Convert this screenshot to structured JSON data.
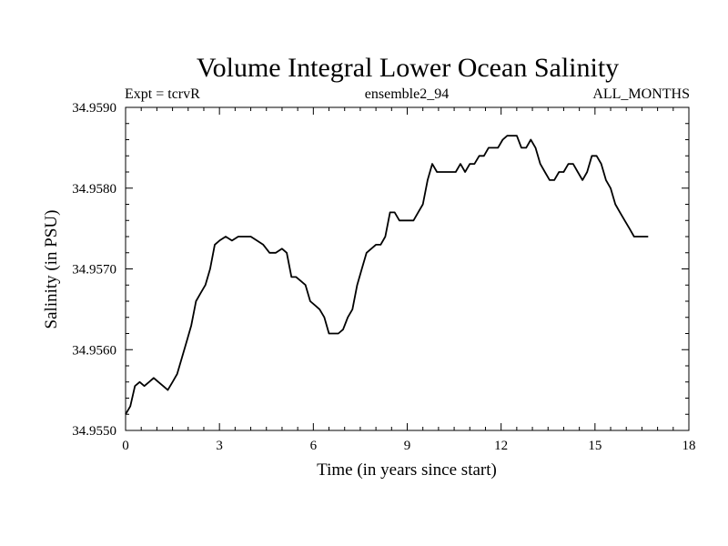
{
  "chart_data": {
    "type": "line",
    "title": "Volume Integral Lower Ocean Salinity",
    "subtitle_left": "Expt = tcrvR",
    "subtitle_center": "ensemble2_94",
    "subtitle_right": "ALL_MONTHS",
    "xlabel": "Time (in years since start)",
    "ylabel": "Salinity (in PSU)",
    "xlim": [
      0,
      18
    ],
    "ylim": [
      34.955,
      34.959
    ],
    "xticks": [
      0,
      3,
      6,
      9,
      12,
      15,
      18
    ],
    "xtick_labels": [
      "0",
      "3",
      "6",
      "9",
      "12",
      "15",
      "18"
    ],
    "yticks": [
      34.955,
      34.956,
      34.957,
      34.958,
      34.959
    ],
    "ytick_labels": [
      "34.9550",
      "34.9560",
      "34.9570",
      "34.9580",
      "34.9590"
    ],
    "series": [
      {
        "name": "salinity",
        "color": "#000000",
        "x": [
          0.0,
          0.15,
          0.3,
          0.45,
          0.6,
          0.75,
          0.9,
          1.05,
          1.2,
          1.35,
          1.5,
          1.65,
          1.8,
          1.95,
          2.1,
          2.25,
          2.4,
          2.55,
          2.7,
          2.85,
          3.0,
          3.2,
          3.4,
          3.6,
          3.8,
          4.0,
          4.2,
          4.4,
          4.6,
          4.8,
          5.0,
          5.15,
          5.3,
          5.45,
          5.6,
          5.75,
          5.9,
          6.05,
          6.2,
          6.35,
          6.5,
          6.65,
          6.8,
          6.95,
          7.1,
          7.25,
          7.4,
          7.55,
          7.7,
          7.85,
          8.0,
          8.15,
          8.3,
          8.45,
          8.6,
          8.75,
          8.9,
          9.05,
          9.2,
          9.35,
          9.5,
          9.65,
          9.8,
          9.95,
          10.1,
          10.25,
          10.4,
          10.55,
          10.7,
          10.85,
          11.0,
          11.15,
          11.3,
          11.45,
          11.6,
          11.75,
          11.9,
          12.05,
          12.2,
          12.35,
          12.5,
          12.65,
          12.8,
          12.95,
          13.1,
          13.25,
          13.4,
          13.55,
          13.7,
          13.85,
          14.0,
          14.15,
          14.3,
          14.45,
          14.6,
          14.75,
          14.9,
          15.05,
          15.2,
          15.35,
          15.5,
          15.65,
          15.8,
          15.95,
          16.1,
          16.25,
          16.4,
          16.55,
          16.7
        ],
        "values": [
          34.9552,
          34.9553,
          34.95555,
          34.9556,
          34.95555,
          34.9556,
          34.95565,
          34.9556,
          34.95555,
          34.9555,
          34.9556,
          34.9557,
          34.9559,
          34.9561,
          34.9563,
          34.9566,
          34.9567,
          34.9568,
          34.957,
          34.9573,
          34.95735,
          34.9574,
          34.95735,
          34.9574,
          34.9574,
          34.9574,
          34.95735,
          34.9573,
          34.9572,
          34.9572,
          34.95725,
          34.9572,
          34.9569,
          34.9569,
          34.95685,
          34.9568,
          34.9566,
          34.95655,
          34.9565,
          34.9564,
          34.9562,
          34.9562,
          34.9562,
          34.95625,
          34.9564,
          34.9565,
          34.9568,
          34.957,
          34.9572,
          34.95725,
          34.9573,
          34.9573,
          34.9574,
          34.9577,
          34.9577,
          34.9576,
          34.9576,
          34.9576,
          34.9576,
          34.9577,
          34.9578,
          34.9581,
          34.9583,
          34.9582,
          34.9582,
          34.9582,
          34.9582,
          34.9582,
          34.9583,
          34.9582,
          34.9583,
          34.9583,
          34.9584,
          34.9584,
          34.9585,
          34.9585,
          34.9585,
          34.9586,
          34.95865,
          34.95865,
          34.95865,
          34.9585,
          34.9585,
          34.9586,
          34.9585,
          34.9583,
          34.9582,
          34.9581,
          34.9581,
          34.9582,
          34.9582,
          34.9583,
          34.9583,
          34.9582,
          34.9581,
          34.9582,
          34.9584,
          34.9584,
          34.9583,
          34.9581,
          34.958,
          34.9578,
          34.9577,
          34.9576,
          34.9575,
          34.9574,
          34.9574,
          34.9574,
          34.9574
        ]
      }
    ]
  }
}
